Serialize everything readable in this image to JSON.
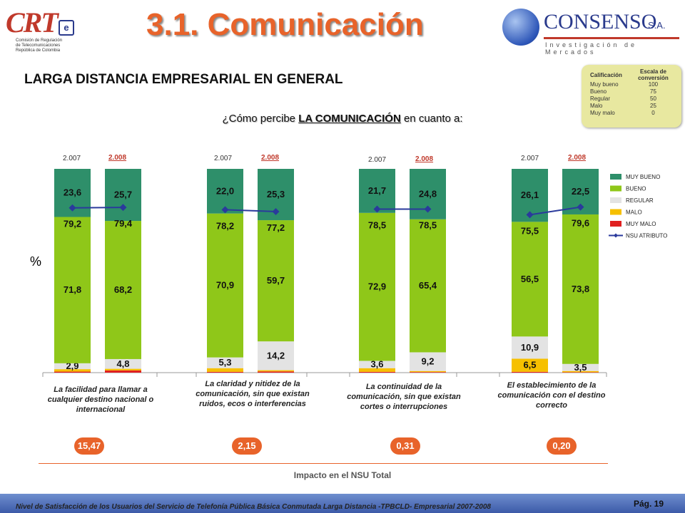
{
  "header": {
    "title": "3.1. Comunicación",
    "crt_logo_text": "CRT",
    "crt_subtitle": [
      "Comisión de Regulación",
      "de Telecomunicaciones",
      "República de Colombia"
    ],
    "consenso_name": "CONSENSO",
    "consenso_sa": "S.A.",
    "consenso_tagline": "Investigación de Mercados"
  },
  "subtitle": "LARGA DISTANCIA EMPRESARIAL EN GENERAL",
  "scale": {
    "headers": [
      "Calificación",
      "Escala de conversión"
    ],
    "rows": [
      {
        "label": "Muy bueno",
        "value": "100"
      },
      {
        "label": "Bueno",
        "value": "75"
      },
      {
        "label": "Regular",
        "value": "50"
      },
      {
        "label": "Malo",
        "value": "25"
      },
      {
        "label": "Muy malo",
        "value": "0"
      }
    ]
  },
  "question_prefix": "¿Cómo percibe ",
  "question_bold": "LA COMUNICACIÓN",
  "question_suffix": " en cuanto a:",
  "y_unit": "%",
  "years": [
    "2.007",
    "2.008"
  ],
  "chart_data": {
    "type": "bar",
    "stacked": true,
    "ylim": [
      0,
      100
    ],
    "groups": [
      {
        "label": "La facilidad para llamar a cualquier destino nacional o internacional",
        "impact": "15,47"
      },
      {
        "label": "La claridad y nitidez de la comunicación, sin que existan ruidos, ecos o interferencias",
        "impact": "2,15"
      },
      {
        "label": "La continuidad de la comunicación, sin que existan cortes o interrupciones",
        "impact": "0,31"
      },
      {
        "label": "El establecimiento de la comunicación con el destino correcto",
        "impact": "0,20"
      }
    ],
    "categories": [
      "2.007",
      "2.008",
      "2.007",
      "2.008",
      "2.007",
      "2.008",
      "2.007",
      "2.008"
    ],
    "series": [
      {
        "name": "MUY MALO",
        "color": "#e02020",
        "values": [
          0.5,
          1.1,
          0.4,
          0.6,
          0.4,
          0.3,
          0.4,
          0.2
        ],
        "labels": [
          "",
          "",
          "",
          "",
          "",
          "",
          "",
          ""
        ]
      },
      {
        "name": "MALO",
        "color": "#f6c000",
        "values": [
          1.2,
          0.8,
          1.8,
          0.6,
          1.8,
          0.5,
          6.5,
          0.6
        ],
        "labels": [
          "",
          "",
          "",
          "",
          "",
          "",
          "6,5",
          ""
        ]
      },
      {
        "name": "REGULAR",
        "color": "#e3e3e3",
        "values": [
          2.9,
          4.8,
          5.3,
          14.2,
          3.6,
          9.2,
          10.9,
          3.5
        ],
        "labels": [
          "2,9",
          "4,8",
          "5,3",
          "14,2",
          "3,6",
          "9,2",
          "10,9",
          "3,5"
        ]
      },
      {
        "name": "BUENO",
        "color": "#8fc719",
        "values": [
          71.8,
          68.2,
          70.9,
          59.7,
          72.9,
          65.4,
          56.5,
          73.8
        ],
        "labels": [
          "71,8",
          "68,2",
          "70,9",
          "59,7",
          "72,9",
          "65,4",
          "56,5",
          "73,8"
        ]
      },
      {
        "name": "MUY BUENO",
        "color": "#2e8f6a",
        "values": [
          23.6,
          25.7,
          22.0,
          25.3,
          21.7,
          24.8,
          26.1,
          22.5
        ],
        "labels": [
          "23,6",
          "25,7",
          "22,0",
          "25,3",
          "21,7",
          "24,8",
          "26,1",
          "22,5"
        ]
      }
    ],
    "nsu": {
      "name": "NSU ATRIBUTO",
      "color": "#2a3a9c",
      "values": [
        79.2,
        79.4,
        78.2,
        77.2,
        78.5,
        78.5,
        75.5,
        79.6
      ],
      "labels": [
        "79,2",
        "79,4",
        "78,2",
        "77,2",
        "78,5",
        "78,5",
        "75,5",
        "79,6"
      ]
    },
    "legend": [
      "MUY BUENO",
      "BUENO",
      "REGULAR",
      "MALO",
      "MUY MALO",
      "NSU ATRIBUTO"
    ],
    "legend_position": "right"
  },
  "impact_title": "Impacto en el NSU Total",
  "footer": {
    "text": "Nivel de Satisfacción de los Usuarios del Servicio de Telefonía Pública Básica Conmutada Larga Distancia -TPBCLD- Empresarial 2007-2008",
    "page": "Pág. 19"
  }
}
